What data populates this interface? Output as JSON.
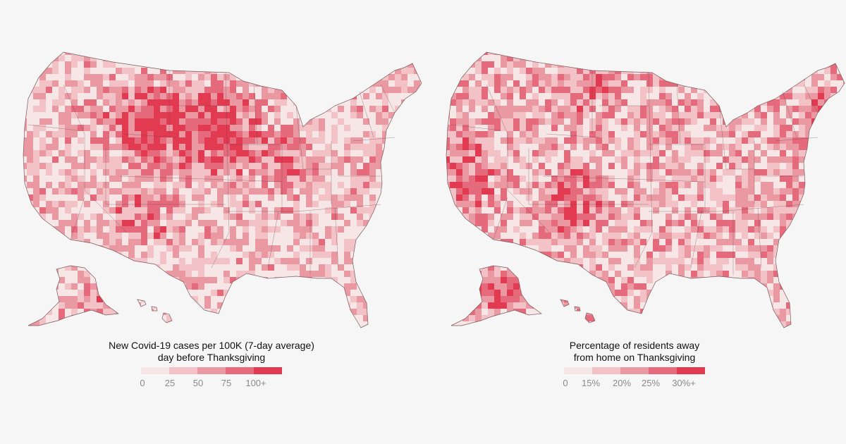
{
  "maps": [
    {
      "id": "cases",
      "title_line1": "New Covid-19 cases per 100K (7-day average)",
      "title_line2": "day before Thanksgiving",
      "scale": {
        "colors": [
          "#f7e6e6",
          "#f2c2c6",
          "#ea98a2",
          "#e46a7c",
          "#e23a50"
        ],
        "labels": [
          "0",
          "25",
          "50",
          "75",
          "100+"
        ]
      }
    },
    {
      "id": "away",
      "title_line1": "Percentage of residents away",
      "title_line2": "from home on Thanksgiving",
      "scale": {
        "colors": [
          "#f7e6e6",
          "#f2c2c6",
          "#ea98a2",
          "#e46a7c",
          "#e23a50"
        ],
        "labels": [
          "0",
          "15%",
          "20%",
          "25%",
          "30%+"
        ]
      }
    }
  ]
}
